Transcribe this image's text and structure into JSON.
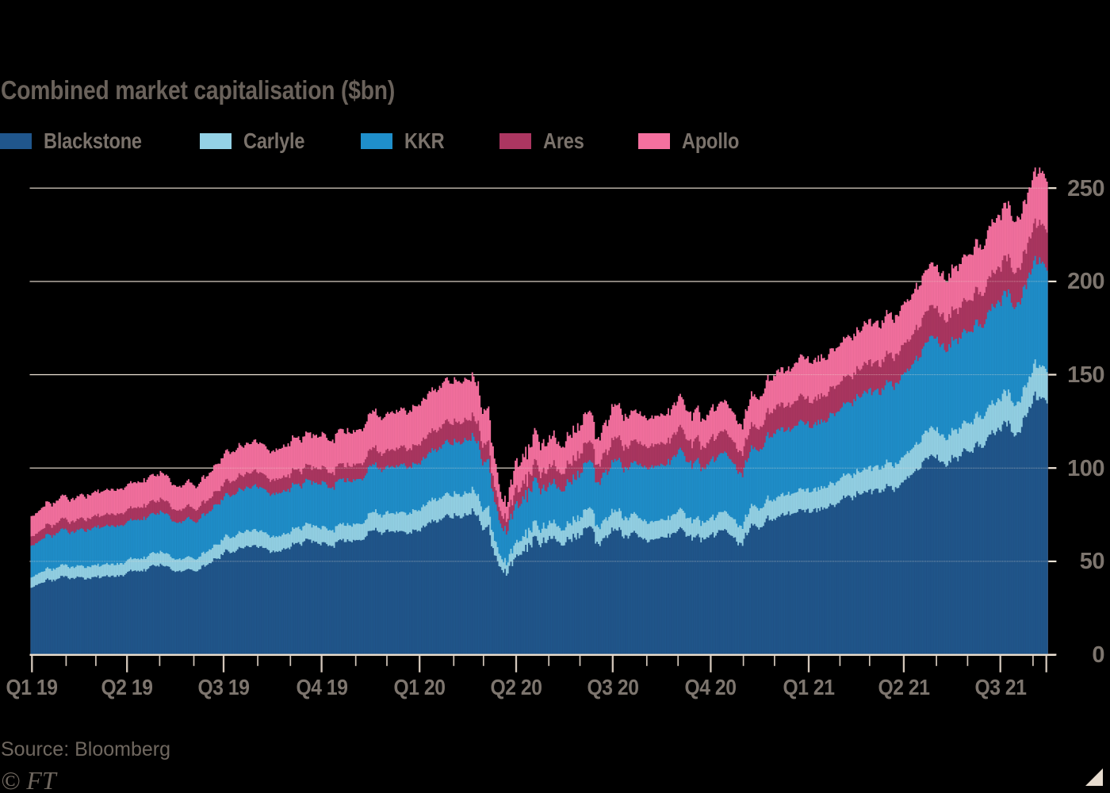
{
  "title": "Combined market capitalisation ($bn)",
  "source": "Source: Bloomberg",
  "credit": "© FT",
  "colors": {
    "background": "#000000",
    "grid": "#F0E5D8",
    "axis": "#ECDFCE",
    "tick": "#D2C6BA",
    "title_text": "#6A625B",
    "legend_text": "#7A726B",
    "axis_text": "#7D756E",
    "source_text": "#6F675F",
    "corner_mark": "#E7DCCF"
  },
  "chart_data": {
    "type": "area",
    "stacked": true,
    "title": "Combined market capitalisation ($bn)",
    "unit": "$bn",
    "xlabel": "",
    "ylabel": "Combined market capitalisation ($bn)",
    "x_range": [
      "2018-12-31",
      "2021-08-13"
    ],
    "frequency": "daily (weekdays)",
    "ylim": [
      0,
      260
    ],
    "y_ticks": [
      0,
      50,
      100,
      150,
      200,
      250
    ],
    "grid": true,
    "legend_position": "top",
    "x_tick_labels": [
      {
        "date": "2019-01-01",
        "label": "Q1 19"
      },
      {
        "date": "2019-04-01",
        "label": "Q2 19"
      },
      {
        "date": "2019-07-01",
        "label": "Q3 19"
      },
      {
        "date": "2019-10-01",
        "label": "Q4 19"
      },
      {
        "date": "2020-01-01",
        "label": "Q1 20"
      },
      {
        "date": "2020-04-01",
        "label": "Q2 20"
      },
      {
        "date": "2020-07-01",
        "label": "Q3 20"
      },
      {
        "date": "2020-10-01",
        "label": "Q4 20"
      },
      {
        "date": "2021-01-01",
        "label": "Q1 21"
      },
      {
        "date": "2021-04-01",
        "label": "Q2 21"
      },
      {
        "date": "2021-07-01",
        "label": "Q3 21"
      }
    ],
    "minor_ticks": "monthly",
    "end_tick_date": "2021-08-13",
    "anchor_dates": [
      "2018-12-31",
      "2019-01-15",
      "2019-02-01",
      "2019-03-01",
      "2019-04-01",
      "2019-05-01",
      "2019-05-15",
      "2019-06-03",
      "2019-07-01",
      "2019-08-01",
      "2019-08-14",
      "2019-09-03",
      "2019-10-01",
      "2019-10-08",
      "2019-11-01",
      "2019-12-02",
      "2020-01-02",
      "2020-02-03",
      "2020-02-19",
      "2020-02-28",
      "2020-03-04",
      "2020-03-09",
      "2020-03-12",
      "2020-03-16",
      "2020-03-18",
      "2020-03-23",
      "2020-03-24",
      "2020-04-01",
      "2020-04-15",
      "2020-05-01",
      "2020-05-14",
      "2020-06-08",
      "2020-06-15",
      "2020-07-01",
      "2020-08-03",
      "2020-09-02",
      "2020-09-24",
      "2020-10-13",
      "2020-10-30",
      "2020-11-09",
      "2020-12-01",
      "2021-01-04",
      "2021-01-27",
      "2021-02-01",
      "2021-03-01",
      "2021-04-01",
      "2021-05-03",
      "2021-05-12",
      "2021-06-01",
      "2021-07-01",
      "2021-07-19",
      "2021-07-23",
      "2021-08-02",
      "2021-08-10",
      "2021-08-13"
    ],
    "series": [
      {
        "name": "Blackstone",
        "color": "#20568C",
        "values": [
          36.0,
          39.0,
          41.2,
          41.4,
          43.1,
          48.5,
          45.0,
          45.9,
          54.4,
          57.9,
          54.1,
          58.5,
          59.7,
          57.5,
          63.0,
          66.0,
          68.6,
          75.0,
          75.5,
          65.0,
          69.0,
          60.0,
          55.0,
          49.0,
          46.0,
          44.5,
          48.0,
          52.3,
          60.4,
          61.9,
          57.0,
          70.0,
          62.0,
          66.3,
          62.2,
          66.2,
          61.9,
          66.8,
          59.8,
          69.8,
          72.9,
          79.4,
          78.0,
          81.5,
          88.8,
          91.4,
          106.0,
          101.1,
          110.0,
          119.8,
          114.5,
          127.0,
          133.5,
          137.8,
          135.5
        ]
      },
      {
        "name": "Carlyle",
        "color": "#94D2E6",
        "values": [
          5.5,
          5.9,
          6.1,
          6.3,
          6.4,
          6.9,
          6.5,
          6.6,
          8.0,
          8.4,
          7.9,
          8.2,
          8.4,
          8.1,
          9.0,
          9.7,
          11.4,
          11.6,
          11.6,
          10.0,
          10.6,
          9.2,
          7.8,
          6.9,
          6.2,
          5.8,
          6.3,
          7.5,
          8.3,
          8.5,
          7.9,
          10.4,
          9.3,
          10.0,
          9.8,
          10.1,
          8.9,
          10.0,
          9.4,
          10.4,
          10.5,
          11.2,
          11.5,
          11.7,
          12.5,
          13.2,
          14.6,
          14.0,
          15.3,
          16.4,
          15.8,
          16.3,
          16.9,
          16.8,
          16.6
        ]
      },
      {
        "name": "KKR",
        "color": "#1F8FCB",
        "values": [
          17.0,
          18.0,
          18.9,
          20.2,
          20.6,
          21.3,
          20.0,
          20.3,
          22.3,
          23.3,
          21.8,
          22.9,
          23.4,
          22.6,
          24.3,
          24.8,
          25.7,
          27.7,
          29.0,
          25.0,
          26.5,
          23.0,
          21.0,
          19.0,
          17.5,
          17.2,
          18.5,
          19.8,
          21.6,
          21.4,
          20.5,
          26.0,
          23.5,
          26.0,
          29.9,
          31.2,
          29.5,
          32.1,
          28.4,
          31.5,
          35.2,
          35.6,
          36.5,
          37.0,
          41.4,
          43.1,
          48.8,
          47.0,
          49.0,
          52.3,
          50.5,
          53.5,
          55.4,
          56.5,
          55.8
        ]
      },
      {
        "name": "Ares",
        "color": "#AC3661",
        "values": [
          5.0,
          5.4,
          5.7,
          6.1,
          6.4,
          6.8,
          6.5,
          6.7,
          7.5,
          7.8,
          7.4,
          7.8,
          8.1,
          7.9,
          8.4,
          9.0,
          10.4,
          10.9,
          10.8,
          9.3,
          9.9,
          8.6,
          7.7,
          7.0,
          6.7,
          6.8,
          7.3,
          8.4,
          9.0,
          9.6,
          9.0,
          10.8,
          9.7,
          11.5,
          11.7,
          12.0,
          11.3,
          11.9,
          11.7,
          12.4,
          13.1,
          13.6,
          13.9,
          14.2,
          15.1,
          15.7,
          16.2,
          15.8,
          16.9,
          18.4,
          17.8,
          19.0,
          19.7,
          20.3,
          20.4
        ]
      },
      {
        "name": "Apollo",
        "color": "#F5709F",
        "values": [
          10.8,
          11.6,
          12.2,
          12.8,
          13.2,
          14.0,
          13.0,
          12.6,
          15.5,
          15.8,
          14.9,
          16.8,
          17.8,
          17.0,
          18.5,
          19.5,
          21.5,
          22.1,
          21.6,
          18.5,
          19.6,
          16.5,
          14.0,
          11.5,
          9.5,
          8.6,
          10.0,
          14.4,
          15.5,
          15.8,
          14.2,
          16.5,
          14.0,
          17.3,
          15.1,
          16.2,
          14.9,
          16.2,
          14.6,
          16.5,
          18.0,
          22.1,
          19.1,
          20.3,
          21.4,
          21.2,
          22.3,
          21.5,
          24.5,
          28.1,
          26.0,
          26.5,
          27.0,
          27.9,
          27.2
        ]
      }
    ],
    "noise": {
      "seed": 20211,
      "base_vol": 0.016,
      "phases": [
        {
          "from": "2020-02-24",
          "to": "2020-03-13",
          "vol": 0.038
        },
        {
          "from": "2020-03-14",
          "to": "2020-04-30",
          "vol": 0.042
        },
        {
          "from": "2020-05-01",
          "to": "2020-07-31",
          "vol": 0.027
        },
        {
          "from": "2020-08-01",
          "to": "2020-11-30",
          "vol": 0.019
        }
      ]
    }
  }
}
